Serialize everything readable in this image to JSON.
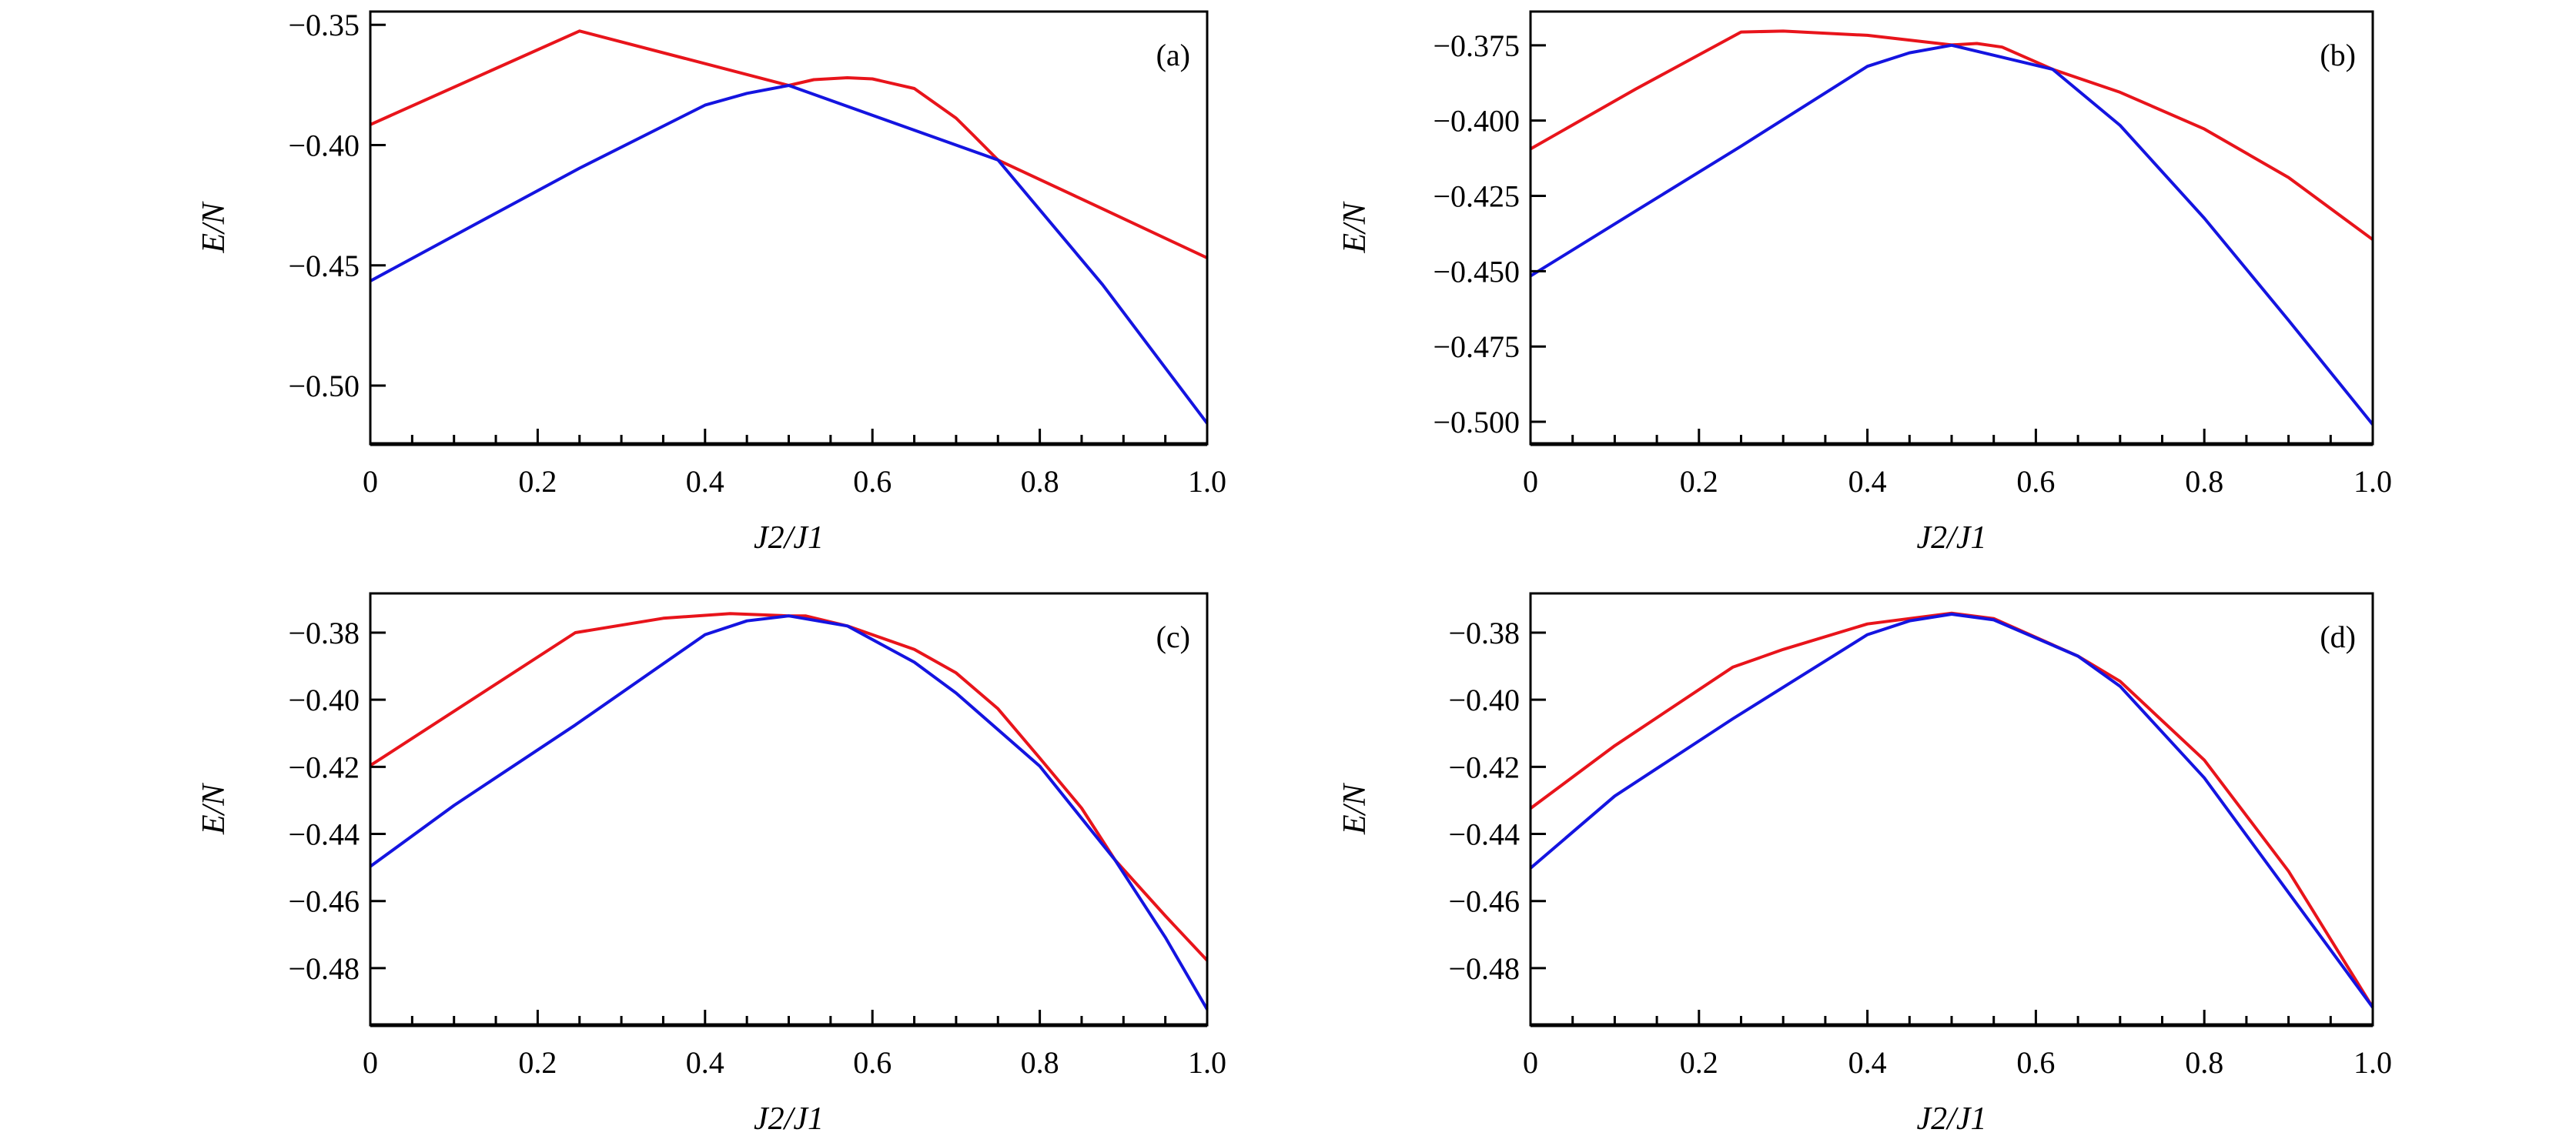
{
  "chart_data": [
    {
      "type": "line",
      "panel_label": "(a)",
      "xlabel": "J2/J1",
      "ylabel": "E/N",
      "xlim": [
        0,
        1.0
      ],
      "ylim": [
        -0.5243,
        -0.3445
      ],
      "xticks": [
        0,
        0.2,
        0.4,
        0.6,
        0.8,
        1.0
      ],
      "xtick_labels": [
        "0",
        "0.2",
        "0.4",
        "0.6",
        "0.8",
        "1.0"
      ],
      "yticks": [
        -0.35,
        -0.4,
        -0.45,
        -0.5
      ],
      "ytick_labels": [
        "−0.35",
        "−0.40",
        "−0.45",
        "−0.50"
      ],
      "grid": false,
      "series": [
        {
          "color": "#e8141b",
          "x": [
            0,
            0.25,
            0.5,
            0.53,
            0.57,
            0.6,
            0.65,
            0.7,
            0.72,
            0.75,
            0.875,
            1.0
          ],
          "y": [
            -0.3915,
            -0.3526,
            -0.3752,
            -0.3728,
            -0.372,
            -0.3725,
            -0.3765,
            -0.3888,
            -0.3957,
            -0.4062,
            -0.4265,
            -0.4469
          ]
        },
        {
          "color": "#1414e0",
          "x": [
            0,
            0.125,
            0.25,
            0.4,
            0.45,
            0.5,
            0.75,
            0.875,
            1.0
          ],
          "y": [
            -0.4565,
            -0.433,
            -0.4096,
            -0.3834,
            -0.3785,
            -0.3752,
            -0.4062,
            -0.458,
            -0.5157
          ]
        }
      ]
    },
    {
      "type": "line",
      "panel_label": "(b)",
      "xlabel": "J2/J1",
      "ylabel": "E/N",
      "xlim": [
        0,
        1.0
      ],
      "ylim": [
        -0.5074,
        -0.3638
      ],
      "xticks": [
        0,
        0.2,
        0.4,
        0.6,
        0.8,
        1.0
      ],
      "xtick_labels": [
        "0",
        "0.2",
        "0.4",
        "0.6",
        "0.8",
        "1.0"
      ],
      "yticks": [
        -0.375,
        -0.4,
        -0.425,
        -0.45,
        -0.475,
        -0.5
      ],
      "ytick_labels": [
        "−0.375",
        "−0.400",
        "−0.425",
        "−0.450",
        "−0.475",
        "−0.500"
      ],
      "grid": false,
      "series": [
        {
          "color": "#e8141b",
          "x": [
            0,
            0.125,
            0.25,
            0.3,
            0.4,
            0.5,
            0.53,
            0.56,
            0.62,
            0.7,
            0.8,
            0.9,
            1.0
          ],
          "y": [
            -0.4094,
            -0.3895,
            -0.3706,
            -0.3703,
            -0.3717,
            -0.3749,
            -0.3744,
            -0.3756,
            -0.383,
            -0.3906,
            -0.4028,
            -0.4189,
            -0.4395
          ]
        },
        {
          "color": "#1414e0",
          "x": [
            0,
            0.125,
            0.25,
            0.4,
            0.45,
            0.5,
            0.62,
            0.7,
            0.8,
            0.9,
            1.0
          ],
          "y": [
            -0.4516,
            -0.43,
            -0.4085,
            -0.382,
            -0.3775,
            -0.375,
            -0.383,
            -0.4016,
            -0.4324,
            -0.4663,
            -0.5009
          ]
        }
      ]
    },
    {
      "type": "line",
      "panel_label": "(c)",
      "xlabel": "J2/J1",
      "ylabel": "E/N",
      "xlim": [
        0,
        1.0
      ],
      "ylim": [
        -0.497,
        -0.3683
      ],
      "xticks": [
        0,
        0.2,
        0.4,
        0.6,
        0.8,
        1.0
      ],
      "xtick_labels": [
        "0",
        "0.2",
        "0.4",
        "0.6",
        "0.8",
        "1.0"
      ],
      "yticks": [
        -0.38,
        -0.4,
        -0.42,
        -0.44,
        -0.46,
        -0.48
      ],
      "ytick_labels": [
        "−0.38",
        "−0.40",
        "−0.42",
        "−0.44",
        "−0.46",
        "−0.48"
      ],
      "grid": false,
      "series": [
        {
          "color": "#e8141b",
          "x": [
            0,
            0.245,
            0.35,
            0.43,
            0.5,
            0.52,
            0.57,
            0.65,
            0.7,
            0.75,
            0.8,
            0.85,
            0.89,
            0.95,
            1.0
          ],
          "y": [
            -0.4196,
            -0.38,
            -0.3757,
            -0.3743,
            -0.375,
            -0.375,
            -0.378,
            -0.385,
            -0.392,
            -0.4027,
            -0.4174,
            -0.4323,
            -0.4478,
            -0.4644,
            -0.4777
          ]
        },
        {
          "color": "#1414e0",
          "x": [
            0,
            0.1,
            0.245,
            0.4,
            0.45,
            0.5,
            0.57,
            0.65,
            0.7,
            0.8,
            0.89,
            0.95,
            1.0
          ],
          "y": [
            -0.4497,
            -0.4315,
            -0.4075,
            -0.3806,
            -0.3765,
            -0.375,
            -0.378,
            -0.3888,
            -0.398,
            -0.4198,
            -0.4478,
            -0.4708,
            -0.4923
          ]
        }
      ]
    },
    {
      "type": "line",
      "panel_label": "(d)",
      "xlabel": "J2/J1",
      "ylabel": "E/N",
      "xlim": [
        0,
        1.0
      ],
      "ylim": [
        -0.497,
        -0.3683
      ],
      "xticks": [
        0,
        0.2,
        0.4,
        0.6,
        0.8,
        1.0
      ],
      "xtick_labels": [
        "0",
        "0.2",
        "0.4",
        "0.6",
        "0.8",
        "1.0"
      ],
      "yticks": [
        -0.38,
        -0.4,
        -0.42,
        -0.44,
        -0.46,
        -0.48
      ],
      "ytick_labels": [
        "−0.38",
        "−0.40",
        "−0.42",
        "−0.44",
        "−0.46",
        "−0.48"
      ],
      "grid": false,
      "series": [
        {
          "color": "#e8141b",
          "x": [
            0,
            0.1,
            0.24,
            0.3,
            0.4,
            0.5,
            0.55,
            0.65,
            0.7,
            0.8,
            0.9,
            1.0
          ],
          "y": [
            -0.4324,
            -0.4137,
            -0.3903,
            -0.385,
            -0.3774,
            -0.3742,
            -0.3758,
            -0.387,
            -0.3945,
            -0.418,
            -0.4511,
            -0.4917
          ]
        },
        {
          "color": "#1414e0",
          "x": [
            0,
            0.1,
            0.24,
            0.4,
            0.45,
            0.5,
            0.55,
            0.65,
            0.7,
            0.8,
            0.9,
            1.0
          ],
          "y": [
            -0.4502,
            -0.4287,
            -0.4057,
            -0.3806,
            -0.3765,
            -0.3745,
            -0.3762,
            -0.387,
            -0.396,
            -0.4233,
            -0.4575,
            -0.4917
          ]
        }
      ]
    }
  ]
}
